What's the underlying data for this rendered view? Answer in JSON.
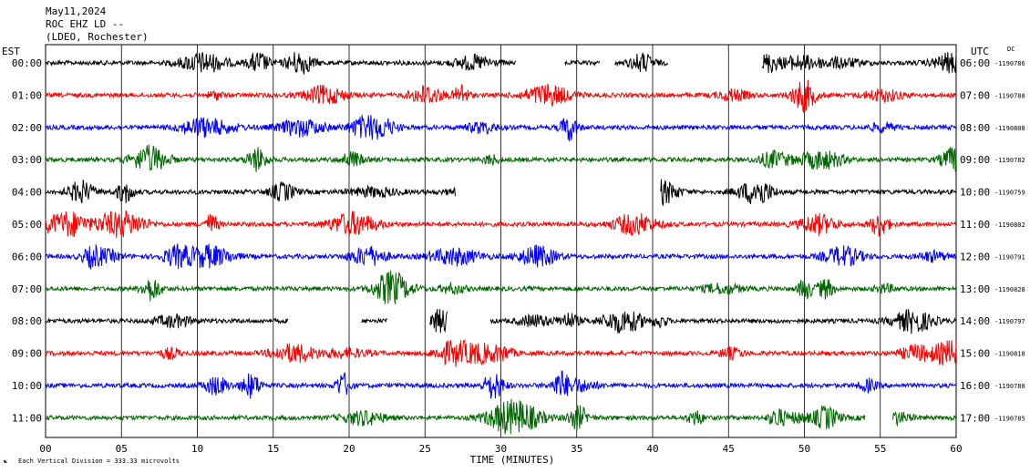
{
  "header": {
    "date": "May11,2024",
    "station": "ROC EHZ LD --",
    "network": "(LDEO, Rochester)"
  },
  "left_axis_title": "EST",
  "right_axis_title": "UTC",
  "dc_label": "DC",
  "xaxis_title": "TIME (MINUTES)",
  "footer_note": "Each Vertical Division =  333.33 microvolts",
  "chart_data": {
    "type": "line",
    "title": "May11,2024",
    "xlabel": "TIME (MINUTES)",
    "xlim": [
      0,
      60
    ],
    "xticks": [
      "00",
      "05",
      "10",
      "15",
      "20",
      "25",
      "30",
      "35",
      "40",
      "45",
      "50",
      "55",
      "60"
    ],
    "colors": {
      "black": "#000000",
      "red": "#ff0000",
      "blue": "#0000ff",
      "green": "#006600"
    },
    "rows": [
      {
        "est": "00:00",
        "utc": "06:00",
        "dc": "-1190786",
        "color": "black",
        "gaps": [
          [
            31,
            34.2
          ],
          [
            36.5,
            37.5
          ],
          [
            41,
            47.2
          ]
        ]
      },
      {
        "est": "01:00",
        "utc": "07:00",
        "dc": "-1190788",
        "color": "red",
        "gaps": []
      },
      {
        "est": "02:00",
        "utc": "08:00",
        "dc": "-1190808",
        "color": "blue",
        "gaps": []
      },
      {
        "est": "03:00",
        "utc": "09:00",
        "dc": "-1190782",
        "color": "green",
        "gaps": []
      },
      {
        "est": "04:00",
        "utc": "10:00",
        "dc": "-1190759",
        "color": "black",
        "gaps": [
          [
            27,
            40.5
          ]
        ]
      },
      {
        "est": "05:00",
        "utc": "11:00",
        "dc": "-1190802",
        "color": "red",
        "gaps": []
      },
      {
        "est": "06:00",
        "utc": "12:00",
        "dc": "-1190791",
        "color": "blue",
        "gaps": []
      },
      {
        "est": "07:00",
        "utc": "13:00",
        "dc": "-1190828",
        "color": "green",
        "gaps": []
      },
      {
        "est": "08:00",
        "utc": "14:00",
        "dc": "-1190797",
        "color": "black",
        "gaps": [
          [
            16,
            20.8
          ],
          [
            22.5,
            25.3
          ],
          [
            26.5,
            29.3
          ]
        ]
      },
      {
        "est": "09:00",
        "utc": "15:00",
        "dc": "-1190818",
        "color": "red",
        "gaps": []
      },
      {
        "est": "10:00",
        "utc": "16:00",
        "dc": "-1190780",
        "color": "blue",
        "gaps": []
      },
      {
        "est": "11:00",
        "utc": "17:00",
        "dc": "-1190785",
        "color": "green",
        "gaps": [
          [
            54,
            55.8
          ]
        ]
      }
    ]
  }
}
